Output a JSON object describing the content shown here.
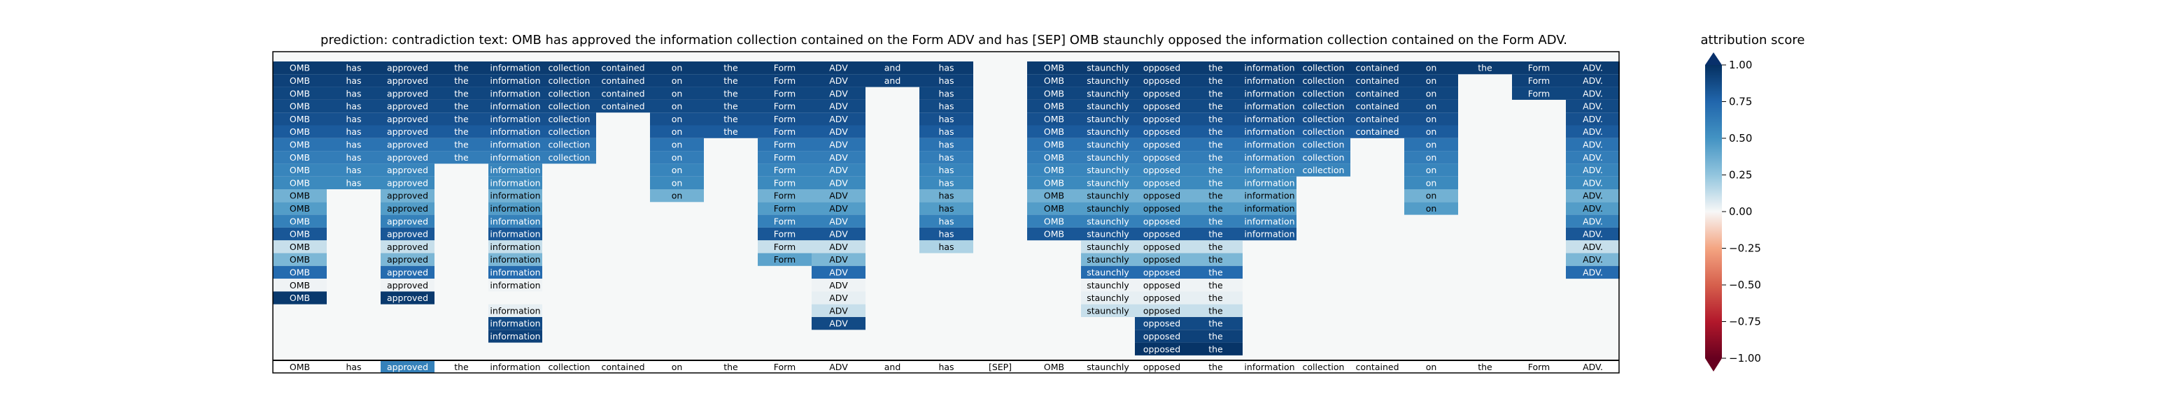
{
  "chart_data": {
    "type": "heatmap",
    "title": "prediction:  contradiction     text:  OMB has approved the information collection contained on the Form ADV and has [SEP] OMB staunchly opposed the information collection contained on the Form ADV.",
    "tokens": [
      "OMB",
      "has",
      "approved",
      "the",
      "information",
      "collection",
      "contained",
      "on",
      "the",
      "Form",
      "ADV",
      "and",
      "has",
      "[SEP]",
      "OMB",
      "staunchly",
      "opposed",
      "the",
      "information",
      "collection",
      "contained",
      "on",
      "the",
      "Form",
      "ADV."
    ],
    "highlighted_token_index": 2,
    "highlighted_token_score": 0.6,
    "rows": [
      [
        {
          "c": 0,
          "v": 0.95
        },
        {
          "c": 1,
          "v": 0.95
        },
        {
          "c": 2,
          "v": 0.95
        },
        {
          "c": 3,
          "v": 0.95
        },
        {
          "c": 4,
          "v": 0.95
        },
        {
          "c": 5,
          "v": 0.95
        },
        {
          "c": 6,
          "v": 0.95
        },
        {
          "c": 7,
          "v": 0.95
        },
        {
          "c": 8,
          "v": 0.95
        },
        {
          "c": 9,
          "v": 0.95
        },
        {
          "c": 10,
          "v": 0.95
        },
        {
          "c": 11,
          "v": 0.95
        },
        {
          "c": 12,
          "v": 0.95
        },
        {
          "c": 14,
          "v": 0.95
        },
        {
          "c": 15,
          "v": 0.95
        },
        {
          "c": 16,
          "v": 0.95
        },
        {
          "c": 17,
          "v": 0.95
        },
        {
          "c": 18,
          "v": 0.95
        },
        {
          "c": 19,
          "v": 0.95
        },
        {
          "c": 20,
          "v": 0.95
        },
        {
          "c": 21,
          "v": 0.95
        },
        {
          "c": 22,
          "v": 0.95
        },
        {
          "c": 23,
          "v": 0.95
        },
        {
          "c": 24,
          "v": 0.95
        }
      ],
      [
        {
          "c": 0,
          "v": 0.92
        },
        {
          "c": 1,
          "v": 0.92
        },
        {
          "c": 2,
          "v": 0.92
        },
        {
          "c": 3,
          "v": 0.92
        },
        {
          "c": 4,
          "v": 0.92
        },
        {
          "c": 5,
          "v": 0.92
        },
        {
          "c": 6,
          "v": 0.92
        },
        {
          "c": 7,
          "v": 0.92
        },
        {
          "c": 8,
          "v": 0.92
        },
        {
          "c": 9,
          "v": 0.92
        },
        {
          "c": 10,
          "v": 0.92
        },
        {
          "c": 11,
          "v": 0.92
        },
        {
          "c": 12,
          "v": 0.92
        },
        {
          "c": 14,
          "v": 0.92
        },
        {
          "c": 15,
          "v": 0.92
        },
        {
          "c": 16,
          "v": 0.92
        },
        {
          "c": 17,
          "v": 0.92
        },
        {
          "c": 18,
          "v": 0.92
        },
        {
          "c": 19,
          "v": 0.92
        },
        {
          "c": 20,
          "v": 0.92
        },
        {
          "c": 21,
          "v": 0.92
        },
        {
          "c": 23,
          "v": 0.92
        },
        {
          "c": 24,
          "v": 0.92
        }
      ],
      [
        {
          "c": 0,
          "v": 0.9
        },
        {
          "c": 1,
          "v": 0.9
        },
        {
          "c": 2,
          "v": 0.9
        },
        {
          "c": 3,
          "v": 0.9
        },
        {
          "c": 4,
          "v": 0.9
        },
        {
          "c": 5,
          "v": 0.9
        },
        {
          "c": 6,
          "v": 0.9
        },
        {
          "c": 7,
          "v": 0.9
        },
        {
          "c": 8,
          "v": 0.9
        },
        {
          "c": 9,
          "v": 0.9
        },
        {
          "c": 10,
          "v": 0.9
        },
        {
          "c": 12,
          "v": 0.9
        },
        {
          "c": 14,
          "v": 0.9
        },
        {
          "c": 15,
          "v": 0.9
        },
        {
          "c": 16,
          "v": 0.9
        },
        {
          "c": 17,
          "v": 0.9
        },
        {
          "c": 18,
          "v": 0.9
        },
        {
          "c": 19,
          "v": 0.9
        },
        {
          "c": 20,
          "v": 0.9
        },
        {
          "c": 21,
          "v": 0.9
        },
        {
          "c": 23,
          "v": 0.9
        },
        {
          "c": 24,
          "v": 0.9
        }
      ],
      [
        {
          "c": 0,
          "v": 0.88
        },
        {
          "c": 1,
          "v": 0.88
        },
        {
          "c": 2,
          "v": 0.88
        },
        {
          "c": 3,
          "v": 0.88
        },
        {
          "c": 4,
          "v": 0.88
        },
        {
          "c": 5,
          "v": 0.88
        },
        {
          "c": 6,
          "v": 0.88
        },
        {
          "c": 7,
          "v": 0.88
        },
        {
          "c": 8,
          "v": 0.88
        },
        {
          "c": 9,
          "v": 0.88
        },
        {
          "c": 10,
          "v": 0.88
        },
        {
          "c": 12,
          "v": 0.88
        },
        {
          "c": 14,
          "v": 0.88
        },
        {
          "c": 15,
          "v": 0.88
        },
        {
          "c": 16,
          "v": 0.88
        },
        {
          "c": 17,
          "v": 0.88
        },
        {
          "c": 18,
          "v": 0.88
        },
        {
          "c": 19,
          "v": 0.88
        },
        {
          "c": 20,
          "v": 0.88
        },
        {
          "c": 21,
          "v": 0.88
        },
        {
          "c": 24,
          "v": 0.88
        }
      ],
      [
        {
          "c": 0,
          "v": 0.85
        },
        {
          "c": 1,
          "v": 0.85
        },
        {
          "c": 2,
          "v": 0.85
        },
        {
          "c": 3,
          "v": 0.85
        },
        {
          "c": 4,
          "v": 0.85
        },
        {
          "c": 5,
          "v": 0.85
        },
        {
          "c": 7,
          "v": 0.85
        },
        {
          "c": 8,
          "v": 0.85
        },
        {
          "c": 9,
          "v": 0.85
        },
        {
          "c": 10,
          "v": 0.85
        },
        {
          "c": 12,
          "v": 0.85
        },
        {
          "c": 14,
          "v": 0.85
        },
        {
          "c": 15,
          "v": 0.85
        },
        {
          "c": 16,
          "v": 0.85
        },
        {
          "c": 17,
          "v": 0.85
        },
        {
          "c": 18,
          "v": 0.85
        },
        {
          "c": 19,
          "v": 0.85
        },
        {
          "c": 20,
          "v": 0.85
        },
        {
          "c": 21,
          "v": 0.85
        },
        {
          "c": 24,
          "v": 0.85
        }
      ],
      [
        {
          "c": 0,
          "v": 0.8
        },
        {
          "c": 1,
          "v": 0.8
        },
        {
          "c": 2,
          "v": 0.8
        },
        {
          "c": 3,
          "v": 0.8
        },
        {
          "c": 4,
          "v": 0.8
        },
        {
          "c": 5,
          "v": 0.8
        },
        {
          "c": 7,
          "v": 0.8
        },
        {
          "c": 8,
          "v": 0.8
        },
        {
          "c": 9,
          "v": 0.8
        },
        {
          "c": 10,
          "v": 0.8
        },
        {
          "c": 12,
          "v": 0.8
        },
        {
          "c": 14,
          "v": 0.8
        },
        {
          "c": 15,
          "v": 0.8
        },
        {
          "c": 16,
          "v": 0.8
        },
        {
          "c": 17,
          "v": 0.8
        },
        {
          "c": 18,
          "v": 0.8
        },
        {
          "c": 19,
          "v": 0.8
        },
        {
          "c": 20,
          "v": 0.8
        },
        {
          "c": 21,
          "v": 0.8
        },
        {
          "c": 24,
          "v": 0.8
        }
      ],
      [
        {
          "c": 0,
          "v": 0.68
        },
        {
          "c": 1,
          "v": 0.68
        },
        {
          "c": 2,
          "v": 0.68
        },
        {
          "c": 3,
          "v": 0.68
        },
        {
          "c": 4,
          "v": 0.68
        },
        {
          "c": 5,
          "v": 0.68
        },
        {
          "c": 7,
          "v": 0.68
        },
        {
          "c": 9,
          "v": 0.68
        },
        {
          "c": 10,
          "v": 0.68
        },
        {
          "c": 12,
          "v": 0.68
        },
        {
          "c": 14,
          "v": 0.68
        },
        {
          "c": 15,
          "v": 0.68
        },
        {
          "c": 16,
          "v": 0.68
        },
        {
          "c": 17,
          "v": 0.68
        },
        {
          "c": 18,
          "v": 0.68
        },
        {
          "c": 19,
          "v": 0.68
        },
        {
          "c": 21,
          "v": 0.68
        },
        {
          "c": 24,
          "v": 0.68
        }
      ],
      [
        {
          "c": 0,
          "v": 0.62
        },
        {
          "c": 1,
          "v": 0.62
        },
        {
          "c": 2,
          "v": 0.62
        },
        {
          "c": 3,
          "v": 0.62
        },
        {
          "c": 4,
          "v": 0.62
        },
        {
          "c": 5,
          "v": 0.62
        },
        {
          "c": 7,
          "v": 0.62
        },
        {
          "c": 9,
          "v": 0.62
        },
        {
          "c": 10,
          "v": 0.62
        },
        {
          "c": 12,
          "v": 0.62
        },
        {
          "c": 14,
          "v": 0.62
        },
        {
          "c": 15,
          "v": 0.62
        },
        {
          "c": 16,
          "v": 0.62
        },
        {
          "c": 17,
          "v": 0.62
        },
        {
          "c": 18,
          "v": 0.62
        },
        {
          "c": 19,
          "v": 0.62
        },
        {
          "c": 21,
          "v": 0.62
        },
        {
          "c": 24,
          "v": 0.62
        }
      ],
      [
        {
          "c": 0,
          "v": 0.58
        },
        {
          "c": 1,
          "v": 0.58
        },
        {
          "c": 2,
          "v": 0.58
        },
        {
          "c": 4,
          "v": 0.58
        },
        {
          "c": 7,
          "v": 0.58
        },
        {
          "c": 9,
          "v": 0.58
        },
        {
          "c": 10,
          "v": 0.58
        },
        {
          "c": 12,
          "v": 0.58
        },
        {
          "c": 14,
          "v": 0.58
        },
        {
          "c": 15,
          "v": 0.58
        },
        {
          "c": 16,
          "v": 0.58
        },
        {
          "c": 17,
          "v": 0.58
        },
        {
          "c": 18,
          "v": 0.58
        },
        {
          "c": 19,
          "v": 0.58
        },
        {
          "c": 21,
          "v": 0.58
        },
        {
          "c": 24,
          "v": 0.58
        }
      ],
      [
        {
          "c": 0,
          "v": 0.55
        },
        {
          "c": 1,
          "v": 0.55
        },
        {
          "c": 2,
          "v": 0.55
        },
        {
          "c": 4,
          "v": 0.55
        },
        {
          "c": 7,
          "v": 0.55
        },
        {
          "c": 9,
          "v": 0.55
        },
        {
          "c": 10,
          "v": 0.55
        },
        {
          "c": 12,
          "v": 0.55
        },
        {
          "c": 14,
          "v": 0.55
        },
        {
          "c": 15,
          "v": 0.55
        },
        {
          "c": 16,
          "v": 0.55
        },
        {
          "c": 17,
          "v": 0.55
        },
        {
          "c": 18,
          "v": 0.55
        },
        {
          "c": 21,
          "v": 0.55
        },
        {
          "c": 24,
          "v": 0.55
        }
      ],
      [
        {
          "c": 0,
          "v": 0.35
        },
        {
          "c": 2,
          "v": 0.35
        },
        {
          "c": 4,
          "v": 0.35
        },
        {
          "c": 7,
          "v": 0.35
        },
        {
          "c": 9,
          "v": 0.35
        },
        {
          "c": 10,
          "v": 0.35
        },
        {
          "c": 12,
          "v": 0.35
        },
        {
          "c": 14,
          "v": 0.35
        },
        {
          "c": 15,
          "v": 0.35
        },
        {
          "c": 16,
          "v": 0.35
        },
        {
          "c": 17,
          "v": 0.35
        },
        {
          "c": 18,
          "v": 0.35
        },
        {
          "c": 21,
          "v": 0.35
        },
        {
          "c": 24,
          "v": 0.35
        }
      ],
      [
        {
          "c": 0,
          "v": 0.45
        },
        {
          "c": 2,
          "v": 0.45
        },
        {
          "c": 4,
          "v": 0.45
        },
        {
          "c": 9,
          "v": 0.45
        },
        {
          "c": 10,
          "v": 0.45
        },
        {
          "c": 12,
          "v": 0.45
        },
        {
          "c": 14,
          "v": 0.45
        },
        {
          "c": 15,
          "v": 0.45
        },
        {
          "c": 16,
          "v": 0.45
        },
        {
          "c": 17,
          "v": 0.45
        },
        {
          "c": 18,
          "v": 0.45
        },
        {
          "c": 21,
          "v": 0.45
        },
        {
          "c": 24,
          "v": 0.45
        }
      ],
      [
        {
          "c": 0,
          "v": 0.6
        },
        {
          "c": 2,
          "v": 0.6
        },
        {
          "c": 4,
          "v": 0.6
        },
        {
          "c": 9,
          "v": 0.6
        },
        {
          "c": 10,
          "v": 0.6
        },
        {
          "c": 12,
          "v": 0.6
        },
        {
          "c": 14,
          "v": 0.6
        },
        {
          "c": 15,
          "v": 0.6
        },
        {
          "c": 16,
          "v": 0.6
        },
        {
          "c": 17,
          "v": 0.6
        },
        {
          "c": 18,
          "v": 0.6
        },
        {
          "c": 24,
          "v": 0.6
        }
      ],
      [
        {
          "c": 0,
          "v": 0.82
        },
        {
          "c": 2,
          "v": 0.82
        },
        {
          "c": 4,
          "v": 0.82
        },
        {
          "c": 9,
          "v": 0.82
        },
        {
          "c": 10,
          "v": 0.82
        },
        {
          "c": 12,
          "v": 0.82
        },
        {
          "c": 14,
          "v": 0.82
        },
        {
          "c": 15,
          "v": 0.82
        },
        {
          "c": 16,
          "v": 0.82
        },
        {
          "c": 17,
          "v": 0.82
        },
        {
          "c": 18,
          "v": 0.82
        },
        {
          "c": 24,
          "v": 0.82
        }
      ],
      [
        {
          "c": 0,
          "v": 0.12
        },
        {
          "c": 2,
          "v": 0.12
        },
        {
          "c": 4,
          "v": 0.12
        },
        {
          "c": 9,
          "v": 0.12
        },
        {
          "c": 10,
          "v": 0.12
        },
        {
          "c": 12,
          "v": 0.18
        },
        {
          "c": 15,
          "v": 0.12
        },
        {
          "c": 16,
          "v": 0.12
        },
        {
          "c": 17,
          "v": 0.12
        },
        {
          "c": 24,
          "v": 0.12
        }
      ],
      [
        {
          "c": 0,
          "v": 0.32
        },
        {
          "c": 2,
          "v": 0.32
        },
        {
          "c": 4,
          "v": 0.32
        },
        {
          "c": 9,
          "v": 0.42
        },
        {
          "c": 10,
          "v": 0.32
        },
        {
          "c": 15,
          "v": 0.32
        },
        {
          "c": 16,
          "v": 0.32
        },
        {
          "c": 17,
          "v": 0.32
        },
        {
          "c": 24,
          "v": 0.32
        }
      ],
      [
        {
          "c": 0,
          "v": 0.72
        },
        {
          "c": 2,
          "v": 0.72
        },
        {
          "c": 4,
          "v": 0.72
        },
        {
          "c": 10,
          "v": 0.72
        },
        {
          "c": 15,
          "v": 0.72
        },
        {
          "c": 16,
          "v": 0.72
        },
        {
          "c": 17,
          "v": 0.72
        },
        {
          "c": 24,
          "v": 0.72
        }
      ],
      [
        {
          "c": 0,
          "v": 0.02
        },
        {
          "c": 2,
          "v": 0.02
        },
        {
          "c": 4,
          "v": 0.02
        },
        {
          "c": 10,
          "v": 0.02
        },
        {
          "c": 15,
          "v": 0.02
        },
        {
          "c": 16,
          "v": 0.02
        },
        {
          "c": 17,
          "v": 0.02
        }
      ],
      [
        {
          "c": 0,
          "v": 0.96
        },
        {
          "c": 2,
          "v": 0.96
        },
        {
          "c": 10,
          "v": 0.04
        },
        {
          "c": 15,
          "v": 0.04
        },
        {
          "c": 16,
          "v": 0.04
        },
        {
          "c": 17,
          "v": 0.04
        }
      ],
      [
        {
          "c": 4,
          "v": 0.04
        },
        {
          "c": 10,
          "v": 0.12
        },
        {
          "c": 15,
          "v": 0.12
        },
        {
          "c": 16,
          "v": 0.12
        },
        {
          "c": 17,
          "v": 0.12
        }
      ],
      [
        {
          "c": 4,
          "v": 0.88
        },
        {
          "c": 10,
          "v": 0.88
        },
        {
          "c": 16,
          "v": 0.88
        },
        {
          "c": 17,
          "v": 0.88
        }
      ],
      [
        {
          "c": 4,
          "v": 0.92
        },
        {
          "c": 16,
          "v": 0.92
        },
        {
          "c": 17,
          "v": 0.92
        }
      ],
      [
        {
          "c": 16,
          "v": 0.98
        },
        {
          "c": 17,
          "v": 0.98
        }
      ]
    ],
    "colorbar": {
      "label": "attribution score",
      "range": [
        -1.0,
        1.0
      ],
      "ticks": [
        "1.00",
        "0.75",
        "0.50",
        "0.25",
        "0.00",
        "−0.25",
        "−0.50",
        "−0.75",
        "−1.00"
      ],
      "colormap": "RdBu"
    },
    "colors": {
      "neutral_background": "#f6f8f8",
      "positive_max": "#08306b",
      "negative_max": "#67001f"
    }
  }
}
